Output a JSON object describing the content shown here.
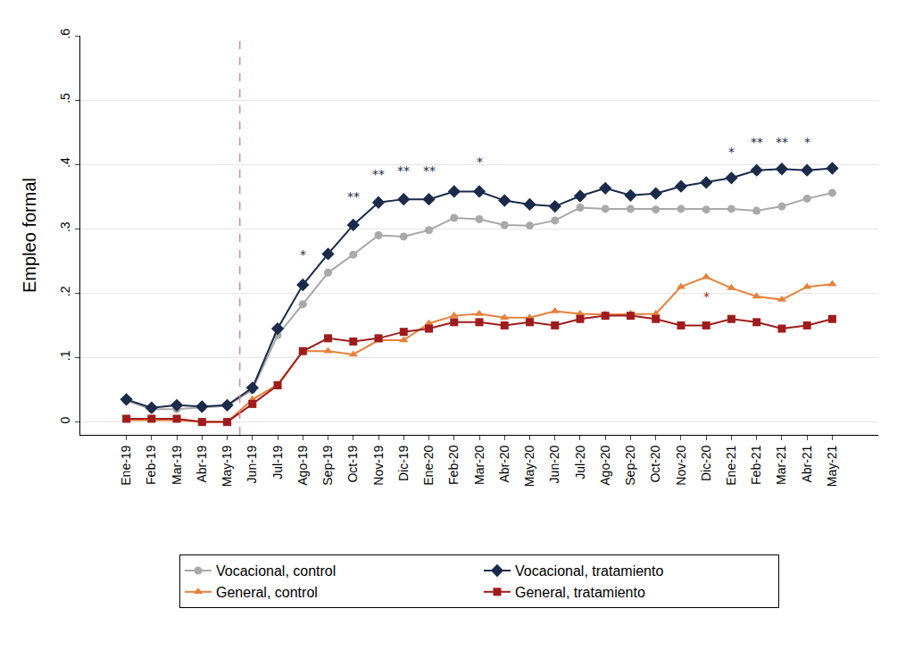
{
  "chart_data": {
    "type": "line",
    "y_label": "Empleo formal",
    "categories": [
      "Ene-19",
      "Feb-19",
      "Mar-19",
      "Abr-19",
      "May-19",
      "Jun-19",
      "Jul-19",
      "Ago-19",
      "Sep-19",
      "Oct-19",
      "Nov-19",
      "Dic-19",
      "Ene-20",
      "Feb-20",
      "Mar-20",
      "Abr-20",
      "May-20",
      "Jun-20",
      "Jul-20",
      "Ago-20",
      "Sep-20",
      "Oct-20",
      "Nov-20",
      "Dic-20",
      "Ene-21",
      "Feb-21",
      "Mar-21",
      "Abr-21",
      "May-21"
    ],
    "series": [
      {
        "name": "Vocacional, control",
        "color": "#a9a9a9",
        "marker": "circle",
        "values": [
          0.033,
          0.02,
          0.02,
          0.022,
          0.025,
          0.05,
          0.135,
          0.183,
          0.232,
          0.26,
          0.29,
          0.288,
          0.298,
          0.317,
          0.315,
          0.306,
          0.305,
          0.313,
          0.333,
          0.331,
          0.331,
          0.33,
          0.331,
          0.33,
          0.331,
          0.328,
          0.335,
          0.347,
          0.356
        ]
      },
      {
        "name": "Vocacional, tratamiento",
        "color": "#1a2a4a",
        "marker": "diamond",
        "values": [
          0.035,
          0.022,
          0.026,
          0.024,
          0.026,
          0.053,
          0.145,
          0.213,
          0.261,
          0.306,
          0.341,
          0.346,
          0.346,
          0.358,
          0.358,
          0.344,
          0.338,
          0.335,
          0.351,
          0.363,
          0.352,
          0.355,
          0.366,
          0.372,
          0.379,
          0.391,
          0.393,
          0.391,
          0.394
        ]
      },
      {
        "name": "General, control",
        "color": "#e8803a",
        "marker": "triangle-up",
        "values": [
          0.003,
          0.003,
          0.003,
          0,
          0,
          0.035,
          0.058,
          0.11,
          0.11,
          0.105,
          0.127,
          0.127,
          0.153,
          0.165,
          0.168,
          0.162,
          0.162,
          0.172,
          0.168,
          0.167,
          0.168,
          0.168,
          0.21,
          0.225,
          0.208,
          0.195,
          0.19,
          0.21,
          0.214
        ]
      },
      {
        "name": "General, tratamiento",
        "color": "#a01c1c",
        "marker": "square",
        "values": [
          0.005,
          0.005,
          0.005,
          0,
          0,
          0.028,
          0.057,
          0.11,
          0.13,
          0.125,
          0.13,
          0.14,
          0.145,
          0.155,
          0.155,
          0.15,
          0.155,
          0.15,
          0.16,
          0.165,
          0.165,
          0.16,
          0.15,
          0.15,
          0.16,
          0.155,
          0.145,
          0.15,
          0.16
        ]
      }
    ],
    "ylim": [
      -0.02,
      0.6
    ],
    "yticks": [
      0,
      {
        "value": 0.1,
        "label": ".1"
      },
      {
        "value": 0.2,
        "label": ".2"
      },
      {
        "value": 0.3,
        "label": ".3"
      },
      {
        "value": 0.4,
        "label": ".4"
      },
      {
        "value": 0.5,
        "label": ".5"
      },
      {
        "value": 0.6,
        "label": ".6"
      }
    ],
    "grid": true,
    "legend": "bottom",
    "reference_line": {
      "x": 4.5,
      "color": "#d9849a",
      "line_style": "dash"
    },
    "annotations": [
      {
        "category": "Ago-19",
        "y": 0.26,
        "text": "*",
        "color": "#1a2a4a"
      },
      {
        "category": "Oct-19",
        "y": 0.35,
        "text": "**",
        "color": "#1a2a4a"
      },
      {
        "category": "Nov-19",
        "y": 0.385,
        "text": "**",
        "color": "#1a2a4a"
      },
      {
        "category": "Dic-19",
        "y": 0.39,
        "text": "**",
        "color": "#1a2a4a"
      },
      {
        "category": "Ene-20",
        "y": 0.39,
        "text": "**",
        "color": "#1a2a4a"
      },
      {
        "category": "Mar-20",
        "y": 0.405,
        "text": "*",
        "color": "#1a2a4a"
      },
      {
        "category": "Dic-20",
        "y": 0.195,
        "text": "*",
        "color": "#a01c1c"
      },
      {
        "category": "Ene-21",
        "y": 0.42,
        "text": "*",
        "color": "#1a2a4a"
      },
      {
        "category": "Feb-21",
        "y": 0.435,
        "text": "**",
        "color": "#1a2a4a"
      },
      {
        "category": "Mar-21",
        "y": 0.435,
        "text": "**",
        "color": "#1a2a4a"
      },
      {
        "category": "Abr-21",
        "y": 0.435,
        "text": "*",
        "color": "#1a2a4a"
      }
    ]
  }
}
